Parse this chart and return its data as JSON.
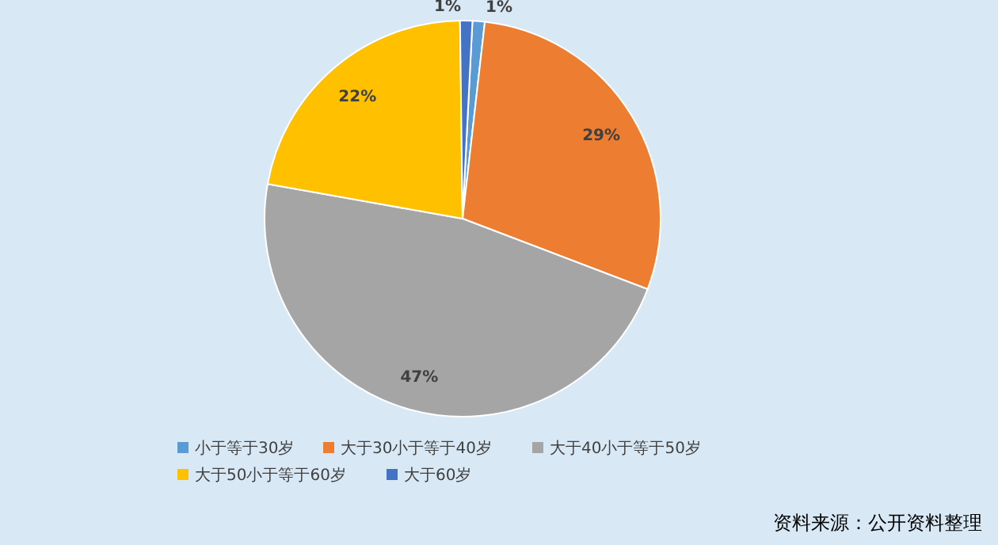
{
  "chart_data": {
    "type": "pie",
    "categories": [
      "小于等于30岁",
      "大于30小于等于40岁",
      "大于40小于等于50岁",
      "大于50小于等于60岁",
      "大于60岁"
    ],
    "values": [
      1,
      29,
      47,
      22,
      1
    ],
    "colors": [
      "#5b9bd5",
      "#ed7d31",
      "#a5a5a5",
      "#ffc000",
      "#4472c4"
    ],
    "value_labels": [
      "1%",
      "29%",
      "47%",
      "22%",
      "1%"
    ],
    "legend": "bottom",
    "annotations": [
      "资料来源：公开资料整理"
    ]
  }
}
